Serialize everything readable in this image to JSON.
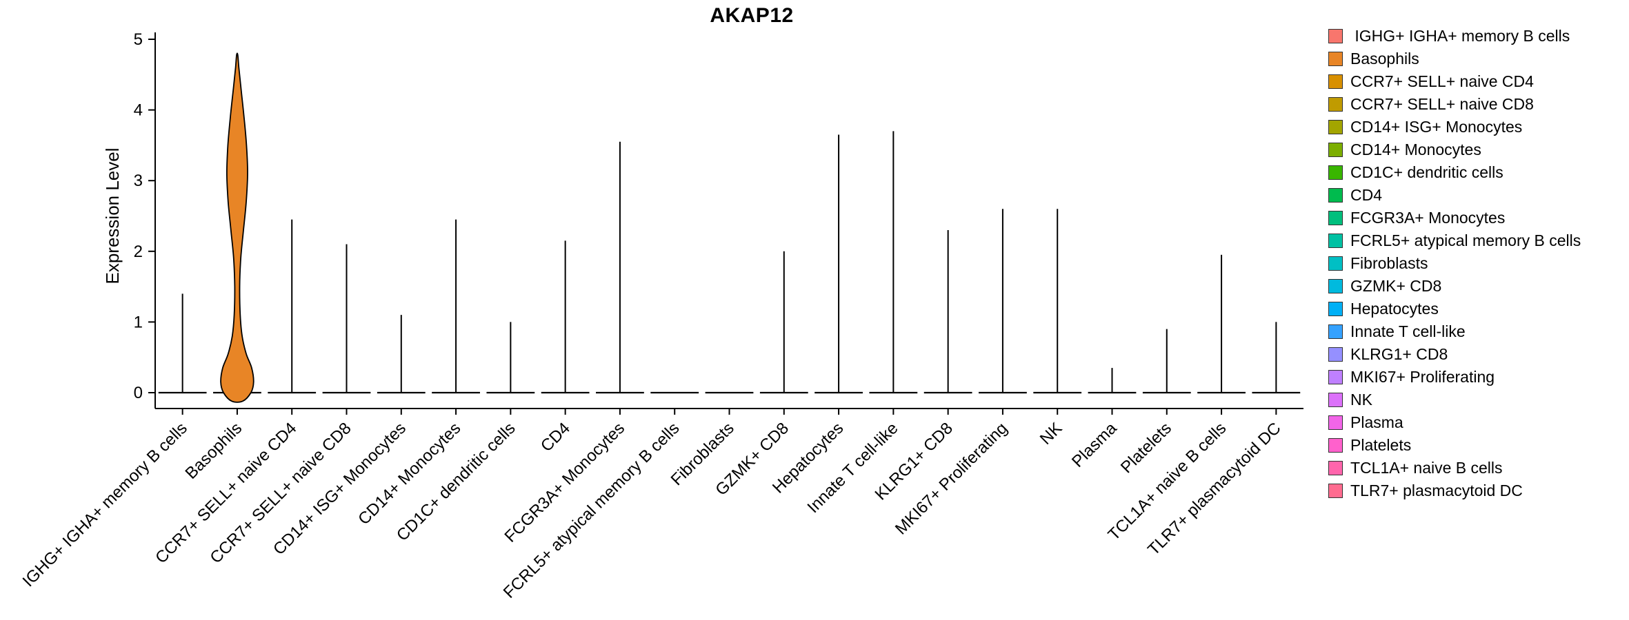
{
  "title": "AKAP12",
  "chart_data": {
    "type": "violin",
    "title": "AKAP12",
    "xlabel": "",
    "ylabel": "Expression Level",
    "ylim": [
      0,
      5
    ],
    "yticks": [
      0,
      1,
      2,
      3,
      4,
      5
    ],
    "grid": false,
    "legend_position": "right",
    "categories": [
      "IGHG+ IGHA+ memory B cells",
      "Basophils",
      "CCR7+ SELL+ naive CD4",
      "CCR7+ SELL+ naive CD8",
      "CD14+ ISG+ Monocytes",
      "CD14+ Monocytes",
      "CD1C+ dendritic cells",
      "CD4",
      "FCGR3A+ Monocytes",
      "FCRL5+ atypical memory B cells",
      "Fibroblasts",
      "GZMK+ CD8",
      "Hepatocytes",
      "Innate T cell-like",
      "KLRG1+ CD8",
      "MKI67+ Proliferating",
      "NK",
      "Plasma",
      "Platelets",
      "TCL1A+ naive B cells",
      "TLR7+ plasmacytoid DC"
    ],
    "colors": [
      "#F8766D",
      "#E88526",
      "#D89000",
      "#C09B00",
      "#A3A500",
      "#7CAE00",
      "#39B600",
      "#00BB4E",
      "#00BF7D",
      "#00C1A3",
      "#00BFC4",
      "#00BADE",
      "#00B0F6",
      "#35A2FF",
      "#9590FF",
      "#BF80FF",
      "#DC71FA",
      "#F265E8",
      "#FF61CC",
      "#FF65AC",
      "#FF6C90"
    ],
    "max_expression": [
      1.4,
      4.78,
      2.45,
      2.1,
      1.1,
      2.45,
      1.0,
      2.15,
      3.55,
      0,
      0,
      2.0,
      3.65,
      3.7,
      2.3,
      2.6,
      2.6,
      0.35,
      0.9,
      1.95,
      1.0
    ],
    "violins": [
      {
        "category": "Basophils",
        "color": "#E88526",
        "profile": [
          [
            -0.12,
            0.2
          ],
          [
            0.0,
            0.5
          ],
          [
            0.15,
            0.6
          ],
          [
            0.35,
            0.53
          ],
          [
            0.55,
            0.33
          ],
          [
            0.8,
            0.18
          ],
          [
            1.1,
            0.11
          ],
          [
            1.5,
            0.09
          ],
          [
            1.9,
            0.13
          ],
          [
            2.3,
            0.23
          ],
          [
            2.7,
            0.33
          ],
          [
            3.1,
            0.38
          ],
          [
            3.5,
            0.34
          ],
          [
            3.9,
            0.25
          ],
          [
            4.3,
            0.14
          ],
          [
            4.6,
            0.06
          ],
          [
            4.78,
            0.02
          ]
        ]
      }
    ]
  },
  "legend": {
    "labels": [
      " IGHG+ IGHA+ memory B cells",
      "Basophils",
      "CCR7+ SELL+ naive CD4",
      "CCR7+ SELL+ naive CD8",
      "CD14+ ISG+ Monocytes",
      "CD14+ Monocytes",
      "CD1C+ dendritic cells",
      "CD4",
      "FCGR3A+ Monocytes",
      "FCRL5+ atypical memory B cells",
      "Fibroblasts",
      "GZMK+ CD8",
      "Hepatocytes",
      "Innate T cell-like",
      "KLRG1+ CD8",
      "MKI67+ Proliferating",
      "NK",
      "Plasma",
      "Platelets",
      "TCL1A+ naive B cells",
      "TLR7+ plasmacytoid DC"
    ]
  }
}
